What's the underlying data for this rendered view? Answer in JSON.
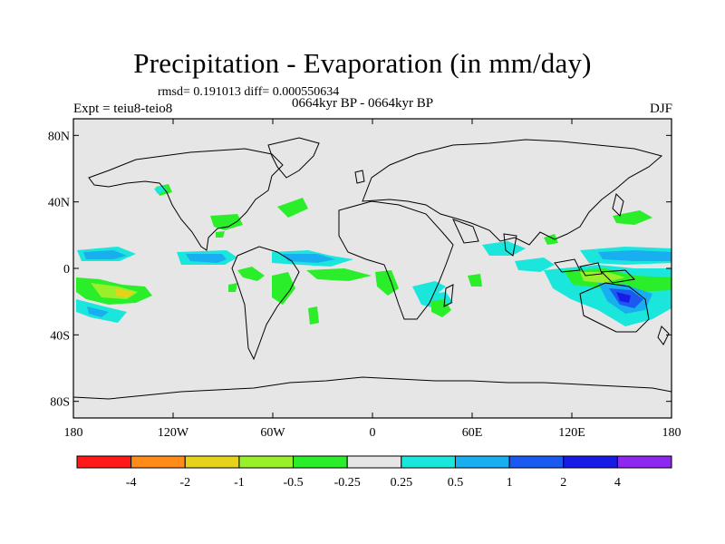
{
  "title": "Precipitation - Evaporation (in mm/day)",
  "stats_line": "rmsd= 0.191013 diff= 0.000550634",
  "period_line": "0664kyr BP - 0664kyr BP",
  "experiment_label": "Expt = teiu8-teio8",
  "season_label": "DJF",
  "map": {
    "lon_range": [
      -180,
      180
    ],
    "lat_range": [
      -90,
      90
    ],
    "lat_ticks": [
      {
        "value": 80,
        "label": "80N"
      },
      {
        "value": 40,
        "label": "40N"
      },
      {
        "value": 0,
        "label": "0"
      },
      {
        "value": -40,
        "label": "40S"
      },
      {
        "value": -80,
        "label": "80S"
      }
    ],
    "lon_ticks": [
      {
        "value": -180,
        "label": "180"
      },
      {
        "value": -120,
        "label": "120W"
      },
      {
        "value": -60,
        "label": "60W"
      },
      {
        "value": 0,
        "label": "0"
      },
      {
        "value": 60,
        "label": "60E"
      },
      {
        "value": 120,
        "label": "120E"
      },
      {
        "value": 180,
        "label": "180"
      }
    ],
    "background_color": "#e6e6e6"
  },
  "colorbar": {
    "colors": [
      "#ff1a1a",
      "#ff8c1a",
      "#e6d21a",
      "#99f02a",
      "#2aee2a",
      "#e6e6e6",
      "#1ae6dc",
      "#19aef0",
      "#1a5af0",
      "#1a1ae6",
      "#8c28f0"
    ],
    "levels": [
      "-4",
      "-2",
      "-1",
      "-0.5",
      "-0.25",
      "0.25",
      "0.5",
      "1",
      "2",
      "4"
    ]
  }
}
